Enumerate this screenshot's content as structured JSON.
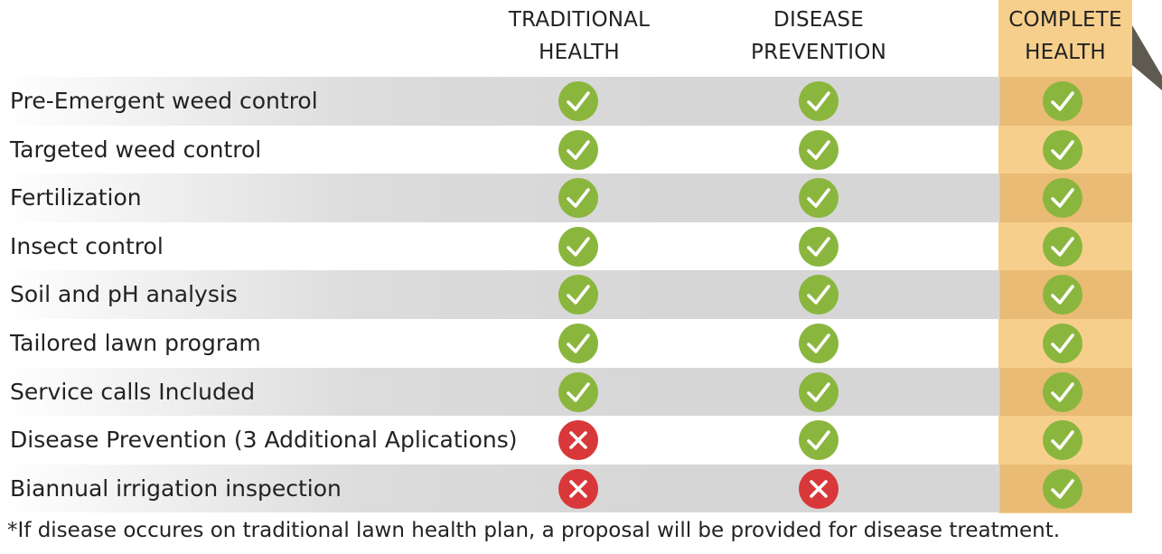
{
  "columns": [
    {
      "line1": "TRADITIONAL",
      "line2": "HEALTH"
    },
    {
      "line1": "DISEASE",
      "line2": "PREVENTION"
    },
    {
      "line1": "COMPLETE",
      "line2": "HEALTH"
    }
  ],
  "rows": [
    {
      "label": "Pre-Emergent weed control",
      "values": [
        "check",
        "check",
        "check"
      ]
    },
    {
      "label": "Targeted weed control",
      "values": [
        "check",
        "check",
        "check"
      ]
    },
    {
      "label": "Fertilization",
      "values": [
        "check",
        "check",
        "check"
      ]
    },
    {
      "label": "Insect control",
      "values": [
        "check",
        "check",
        "check"
      ]
    },
    {
      "label": "Soil and pH analysis",
      "values": [
        "check",
        "check",
        "check"
      ]
    },
    {
      "label": "Tailored lawn program",
      "values": [
        "check",
        "check",
        "check"
      ]
    },
    {
      "label": "Service calls Included",
      "values": [
        "check",
        "check",
        "check"
      ]
    },
    {
      "label": "Disease Prevention (3 Additional Aplications)",
      "values": [
        "cross",
        "check",
        "check"
      ]
    },
    {
      "label": "Biannual irrigation inspection",
      "values": [
        "cross",
        "cross",
        "check"
      ]
    }
  ],
  "footnote": "*If disease occures on traditional lawn health plan, a proposal will be provided for disease treatment.",
  "colors": {
    "check": "#8ab63e",
    "cross": "#d8383a",
    "highlight": "#f7cf8c",
    "highlight_shaded": "#e9bb74",
    "row_shade": "#d6d6d6",
    "ribbon_fold": "#5e5a50"
  },
  "icons": {
    "check": "check-circle-icon",
    "cross": "cross-circle-icon"
  }
}
